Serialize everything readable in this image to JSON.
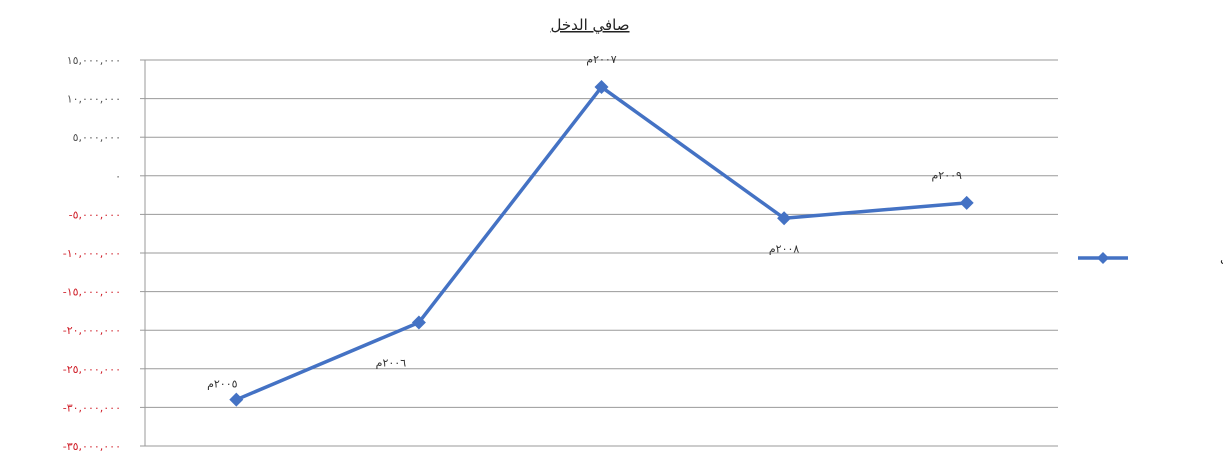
{
  "chart_data": {
    "type": "line",
    "title": "صافي الدخل",
    "xlabel": "",
    "ylabel": "",
    "categories": [
      "٢٠٠٥م",
      "٢٠٠٦م",
      "٢٠٠٧م",
      "٢٠٠٨م",
      "٢٠٠٩م"
    ],
    "series": [
      {
        "name": "صافي الدخل",
        "color": "#4472C4",
        "values": [
          -29000000,
          -19000000,
          11500000,
          -5500000,
          -3500000
        ]
      }
    ],
    "data_labels": [
      "٢٠٠٥م",
      "٢٠٠٦م",
      "٢٠٠٧م",
      "٢٠٠٨م",
      "٢٠٠٩م"
    ],
    "ylim": [
      -35000000,
      15000000
    ],
    "y_ticks": [
      {
        "value": 15000000,
        "label": "١٥,٠٠٠,٠٠٠"
      },
      {
        "value": 10000000,
        "label": "١٠,٠٠٠,٠٠٠"
      },
      {
        "value": 5000000,
        "label": "٥,٠٠٠,٠٠٠"
      },
      {
        "value": 0,
        "label": "٠"
      },
      {
        "value": -5000000,
        "label": "-٥,٠٠٠,٠٠٠"
      },
      {
        "value": -10000000,
        "label": "-١٠,٠٠٠,٠٠٠"
      },
      {
        "value": -15000000,
        "label": "-١٥,٠٠٠,٠٠٠"
      },
      {
        "value": -20000000,
        "label": "-٢٠,٠٠٠,٠٠٠"
      },
      {
        "value": -25000000,
        "label": "-٢٥,٠٠٠,٠٠٠"
      },
      {
        "value": -30000000,
        "label": "-٣٠,٠٠٠,٠٠٠"
      },
      {
        "value": -35000000,
        "label": "-٣٥,٠٠٠,٠٠٠"
      }
    ],
    "grid": true,
    "legend_position": "right",
    "negative_tick_color": "#D0202A",
    "positive_tick_color": "#555555",
    "gridline_color": "#9A9A9A"
  }
}
